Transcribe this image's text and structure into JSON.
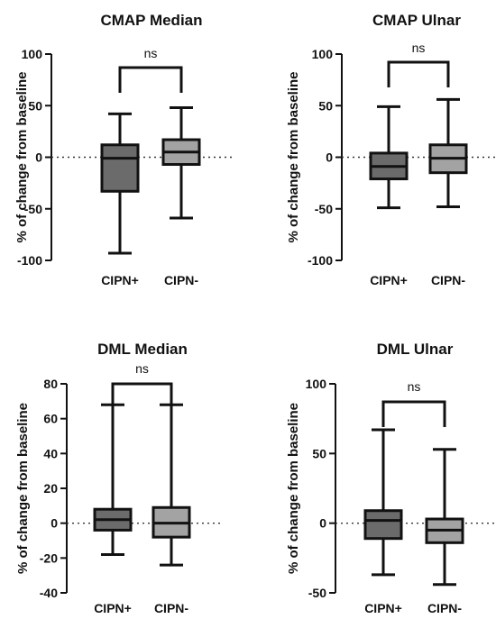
{
  "chart_data": [
    {
      "type": "box",
      "title": "CMAP Median",
      "ylabel": "% of change from baseline",
      "ylim": [
        -100,
        100
      ],
      "yticks": [
        -100,
        -50,
        0,
        50,
        100
      ],
      "categories": [
        "CIPN+",
        "CIPN-"
      ],
      "boxes": [
        {
          "category": "CIPN+",
          "min": -93,
          "q1": -33,
          "median": -1,
          "q3": 12,
          "max": 42,
          "fill": "#6b6b6b"
        },
        {
          "category": "CIPN-",
          "min": -59,
          "q1": -7,
          "median": 5,
          "q3": 17,
          "max": 48,
          "fill": "#a3a3a3"
        }
      ],
      "significance": "ns",
      "reference_line": 0
    },
    {
      "type": "box",
      "title": "CMAP Ulnar",
      "ylabel": "% of change from baseline",
      "ylim": [
        -100,
        100
      ],
      "yticks": [
        -100,
        -50,
        0,
        50,
        100
      ],
      "categories": [
        "CIPN+",
        "CIPN-"
      ],
      "boxes": [
        {
          "category": "CIPN+",
          "min": -49,
          "q1": -21,
          "median": -9,
          "q3": 4,
          "max": 49,
          "fill": "#6b6b6b"
        },
        {
          "category": "CIPN-",
          "min": -48,
          "q1": -15,
          "median": -1,
          "q3": 12,
          "max": 56,
          "fill": "#a3a3a3"
        }
      ],
      "significance": "ns",
      "reference_line": 0
    },
    {
      "type": "box",
      "title": "DML  Median",
      "ylabel": "% of change from baseline",
      "ylim": [
        -40,
        80
      ],
      "yticks": [
        -40,
        -20,
        0,
        20,
        40,
        60,
        80
      ],
      "categories": [
        "CIPN+",
        "CIPN-"
      ],
      "boxes": [
        {
          "category": "CIPN+",
          "min": -18,
          "q1": -4,
          "median": 2,
          "q3": 8,
          "max": 68,
          "fill": "#6b6b6b"
        },
        {
          "category": "CIPN-",
          "min": -24,
          "q1": -8,
          "median": 0,
          "q3": 9,
          "max": 68,
          "fill": "#a3a3a3"
        }
      ],
      "significance": "ns",
      "reference_line": 0
    },
    {
      "type": "box",
      "title": "DML Ulnar",
      "ylabel": "% of change from baseline",
      "ylim": [
        -50,
        100
      ],
      "yticks": [
        -50,
        0,
        50,
        100
      ],
      "categories": [
        "CIPN+",
        "CIPN-"
      ],
      "boxes": [
        {
          "category": "CIPN+",
          "min": -37,
          "q1": -11,
          "median": 2,
          "q3": 9,
          "max": 67,
          "fill": "#6b6b6b"
        },
        {
          "category": "CIPN-",
          "min": -44,
          "q1": -14,
          "median": -5,
          "q3": 3,
          "max": 53,
          "fill": "#a3a3a3"
        }
      ],
      "significance": "ns",
      "reference_line": 0
    }
  ]
}
